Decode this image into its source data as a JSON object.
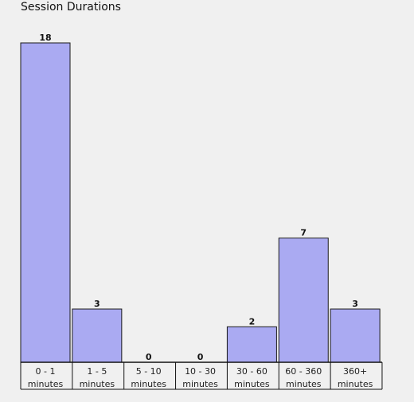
{
  "chart_data": {
    "type": "bar",
    "title": "Session Durations",
    "categories": [
      [
        "0 - 1",
        "minutes"
      ],
      [
        "1 - 5",
        "minutes"
      ],
      [
        "5 - 10",
        "minutes"
      ],
      [
        "10 - 30",
        "minutes"
      ],
      [
        "30 - 60",
        "minutes"
      ],
      [
        "60 - 360",
        "minutes"
      ],
      [
        "360+",
        "minutes"
      ]
    ],
    "values": [
      18,
      3,
      0,
      0,
      2,
      7,
      3
    ],
    "ylim": [
      0,
      18
    ],
    "grid": false,
    "legend": "none",
    "bar_color": "#aaaaf2",
    "bar_edge_color": "#1a1a1a",
    "axis_color": "#111111"
  }
}
